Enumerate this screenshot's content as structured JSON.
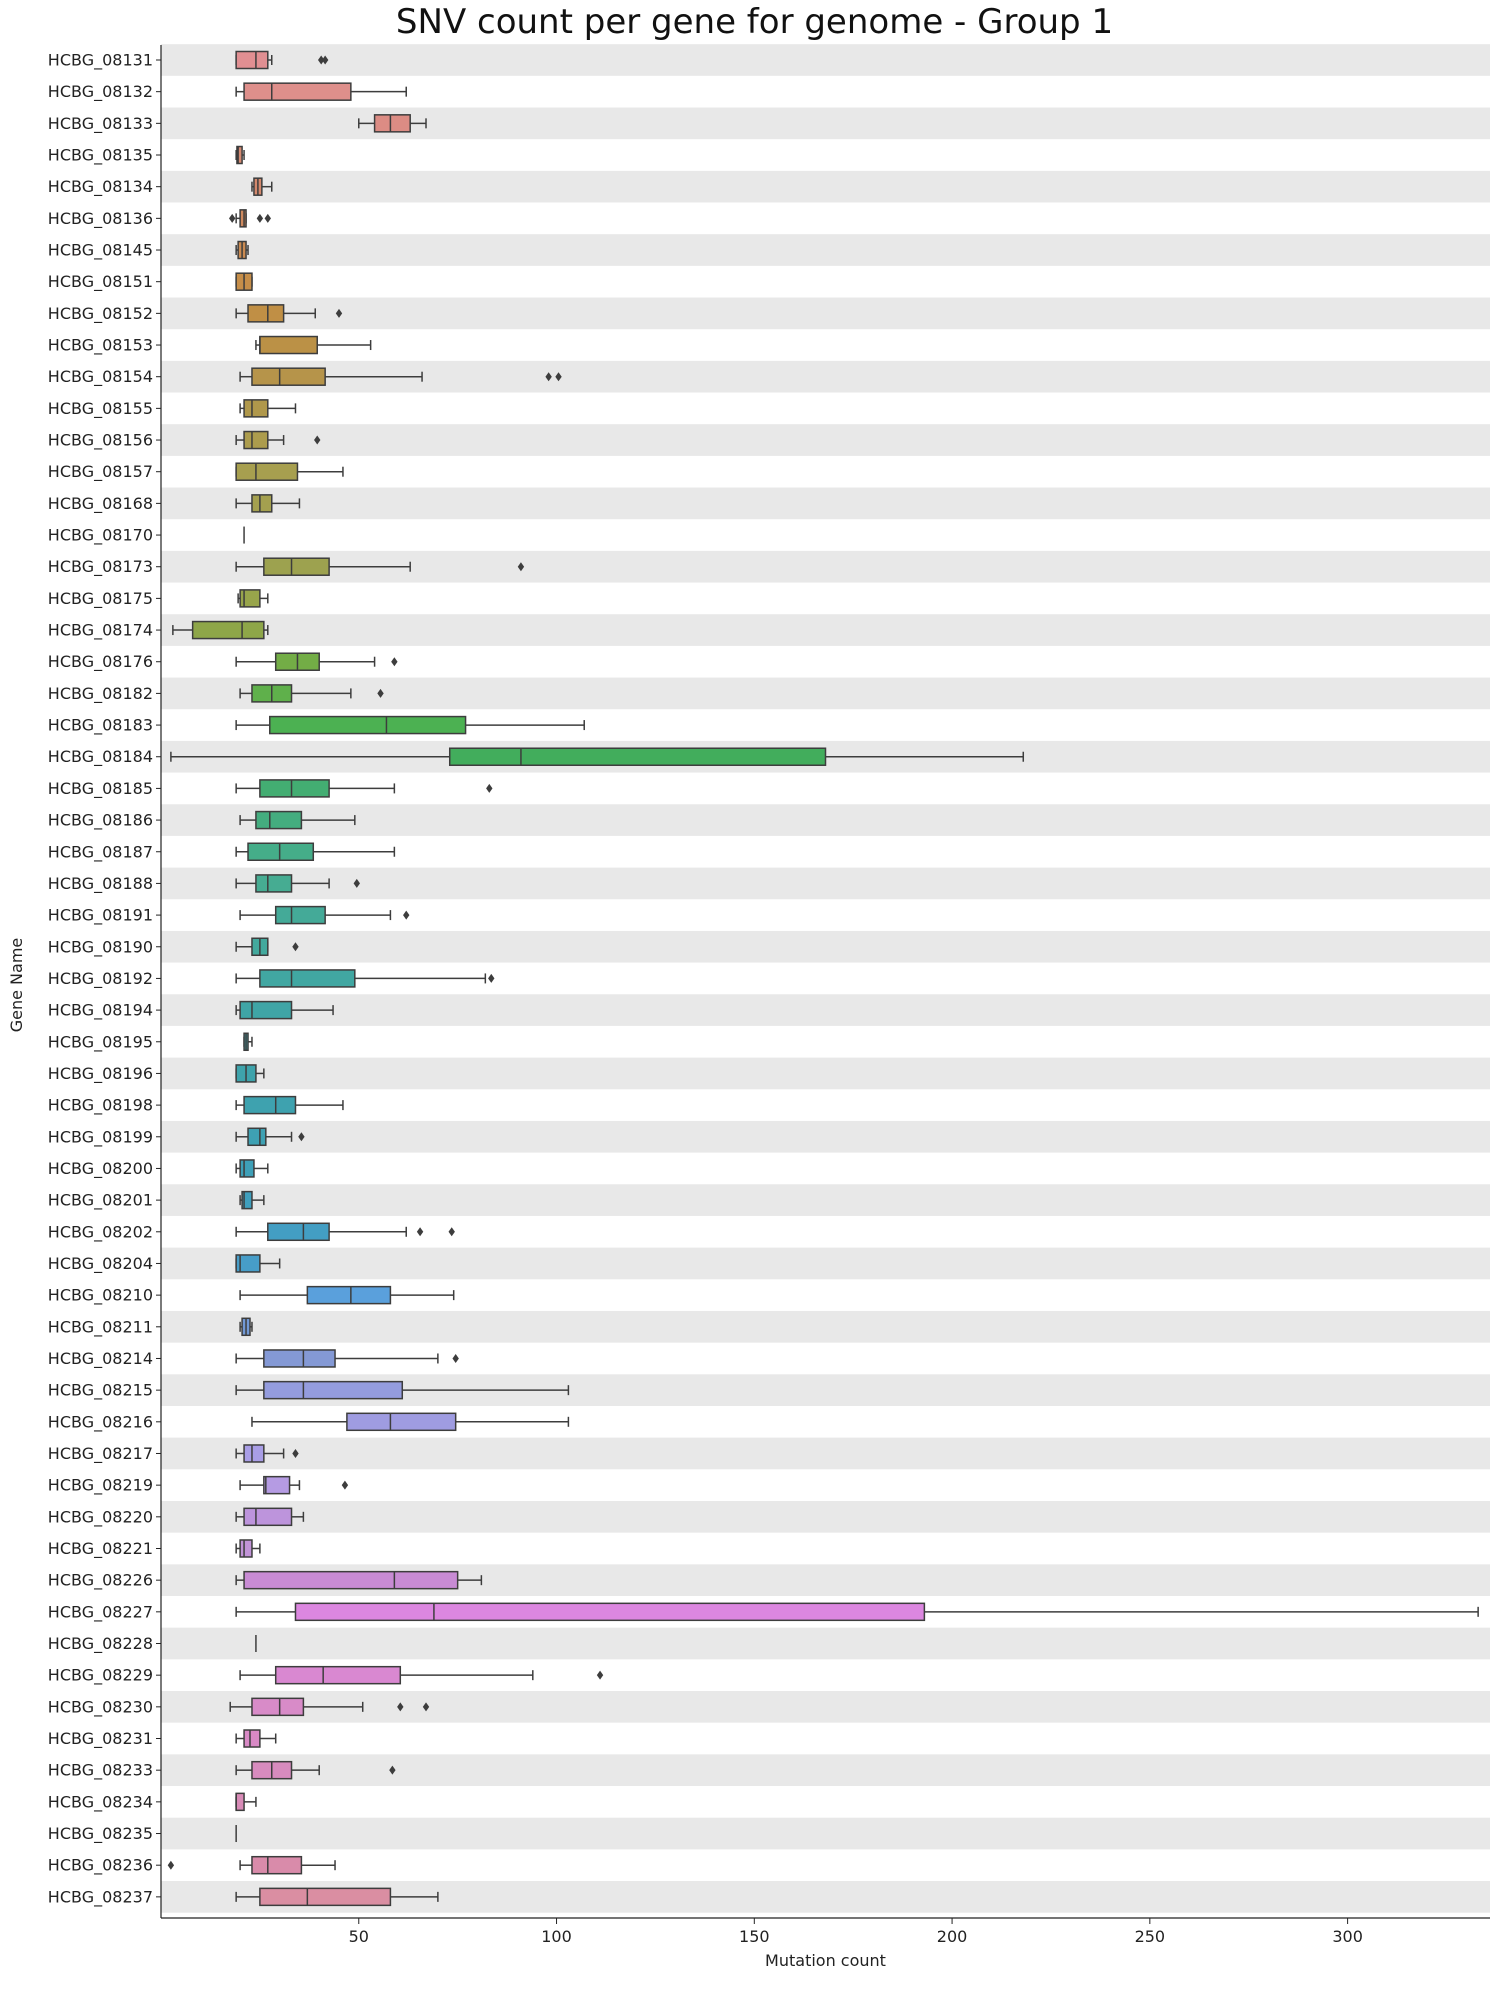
{
  "chart_data": {
    "type": "box",
    "orientation": "horizontal",
    "title": "SNV count per gene for genome - Group 1",
    "xlabel": "Mutation count",
    "ylabel": "Gene Name",
    "xlim": [
      0,
      336
    ],
    "xticks": [
      50,
      100,
      150,
      200,
      250,
      300
    ],
    "row_striping": true,
    "series": [
      {
        "gene": "HCBG_08131",
        "color": "#e08f92",
        "whisker_low": 19,
        "q1": 19,
        "median": 24,
        "q3": 27,
        "whisker_high": 28,
        "outliers": [
          40.5,
          41.5
        ]
      },
      {
        "gene": "HCBG_08132",
        "color": "#de8f8b",
        "whisker_low": 19,
        "q1": 21,
        "median": 28,
        "q3": 48,
        "whisker_high": 62,
        "outliers": []
      },
      {
        "gene": "HCBG_08133",
        "color": "#dc8c84",
        "whisker_low": 50,
        "q1": 54,
        "median": 58,
        "q3": 63,
        "whisker_high": 67,
        "outliers": []
      },
      {
        "gene": "HCBG_08135",
        "color": "#d58a72",
        "whisker_low": 19,
        "q1": 19.2,
        "median": 19.5,
        "q3": 20.5,
        "whisker_high": 21,
        "outliers": []
      },
      {
        "gene": "HCBG_08134",
        "color": "#d4896d",
        "whisker_low": 23,
        "q1": 23.5,
        "median": 24.5,
        "q3": 25.5,
        "whisker_high": 28,
        "outliers": []
      },
      {
        "gene": "HCBG_08136",
        "color": "#d08a5f",
        "whisker_low": 19,
        "q1": 20,
        "median": 21,
        "q3": 21.5,
        "whisker_high": 21.5,
        "outliers": [
          18,
          25,
          27
        ]
      },
      {
        "gene": "HCBG_08145",
        "color": "#cb8b52",
        "whisker_low": 19,
        "q1": 19.5,
        "median": 20.5,
        "q3": 21.5,
        "whisker_high": 22,
        "outliers": []
      },
      {
        "gene": "HCBG_08151",
        "color": "#c68e49",
        "whisker_low": 19,
        "q1": 19,
        "median": 21,
        "q3": 23,
        "whisker_high": 23,
        "outliers": []
      },
      {
        "gene": "HCBG_08152",
        "color": "#c08f45",
        "whisker_low": 19,
        "q1": 22,
        "median": 27,
        "q3": 31,
        "whisker_high": 39,
        "outliers": [
          45
        ]
      },
      {
        "gene": "HCBG_08153",
        "color": "#bb9146",
        "whisker_low": 24,
        "q1": 25,
        "median": 25,
        "q3": 39.5,
        "whisker_high": 53,
        "outliers": []
      },
      {
        "gene": "HCBG_08154",
        "color": "#b6944a",
        "whisker_low": 20,
        "q1": 23,
        "median": 30,
        "q3": 41.5,
        "whisker_high": 66,
        "outliers": [
          98,
          100.5
        ]
      },
      {
        "gene": "HCBG_08155",
        "color": "#b0984b",
        "whisker_low": 20,
        "q1": 21,
        "median": 23,
        "q3": 27,
        "whisker_high": 34,
        "outliers": []
      },
      {
        "gene": "HCBG_08156",
        "color": "#ac9c4d",
        "whisker_low": 19,
        "q1": 21,
        "median": 23,
        "q3": 27,
        "whisker_high": 31,
        "outliers": [
          39.5
        ]
      },
      {
        "gene": "HCBG_08157",
        "color": "#a79f4f",
        "whisker_low": 19,
        "q1": 19,
        "median": 24,
        "q3": 34.5,
        "whisker_high": 46,
        "outliers": []
      },
      {
        "gene": "HCBG_08168",
        "color": "#a4a04f",
        "whisker_low": 19,
        "q1": 23,
        "median": 25,
        "q3": 28,
        "whisker_high": 35,
        "outliers": []
      },
      {
        "gene": "HCBG_08170",
        "color": "#a1a24f",
        "whisker_low": 21,
        "q1": 21,
        "median": 21,
        "q3": 21,
        "whisker_high": 21,
        "outliers": []
      },
      {
        "gene": "HCBG_08173",
        "color": "#9da24f",
        "whisker_low": 19,
        "q1": 26,
        "median": 33,
        "q3": 42.5,
        "whisker_high": 63,
        "outliers": [
          91
        ]
      },
      {
        "gene": "HCBG_08175",
        "color": "#98a54b",
        "whisker_low": 19.5,
        "q1": 20,
        "median": 21,
        "q3": 25,
        "whisker_high": 27,
        "outliers": []
      },
      {
        "gene": "HCBG_08174",
        "color": "#8ea648",
        "whisker_low": 3,
        "q1": 8,
        "median": 20.5,
        "q3": 26,
        "whisker_high": 27,
        "outliers": []
      },
      {
        "gene": "HCBG_08176",
        "color": "#73ad46",
        "whisker_low": 19,
        "q1": 29,
        "median": 34.5,
        "q3": 40,
        "whisker_high": 54,
        "outliers": [
          59
        ]
      },
      {
        "gene": "HCBG_08182",
        "color": "#5fb04b",
        "whisker_low": 20,
        "q1": 23,
        "median": 28,
        "q3": 33,
        "whisker_high": 48,
        "outliers": [
          55.5
        ]
      },
      {
        "gene": "HCBG_08183",
        "color": "#4cb152",
        "whisker_low": 19,
        "q1": 27.5,
        "median": 57,
        "q3": 77,
        "whisker_high": 107,
        "outliers": []
      },
      {
        "gene": "HCBG_08184",
        "color": "#42ad5c",
        "whisker_low": 2.5,
        "q1": 73,
        "median": 91,
        "q3": 168,
        "whisker_high": 218,
        "outliers": []
      },
      {
        "gene": "HCBG_08185",
        "color": "#43ad72",
        "whisker_low": 19,
        "q1": 25,
        "median": 33,
        "q3": 42.5,
        "whisker_high": 59,
        "outliers": [
          83
        ]
      },
      {
        "gene": "HCBG_08186",
        "color": "#44ad7f",
        "whisker_low": 20,
        "q1": 24,
        "median": 27.5,
        "q3": 35.5,
        "whisker_high": 49,
        "outliers": []
      },
      {
        "gene": "HCBG_08187",
        "color": "#45ad89",
        "whisker_low": 19,
        "q1": 22,
        "median": 30,
        "q3": 38.5,
        "whisker_high": 59,
        "outliers": []
      },
      {
        "gene": "HCBG_08188",
        "color": "#46ac92",
        "whisker_low": 19,
        "q1": 24,
        "median": 27,
        "q3": 33,
        "whisker_high": 42.5,
        "outliers": [
          49.5
        ]
      },
      {
        "gene": "HCBG_08191",
        "color": "#44aa98",
        "whisker_low": 20,
        "q1": 29,
        "median": 33,
        "q3": 41.5,
        "whisker_high": 58,
        "outliers": [
          62
        ]
      },
      {
        "gene": "HCBG_08190",
        "color": "#43a99d",
        "whisker_low": 19,
        "q1": 23,
        "median": 25,
        "q3": 27,
        "whisker_high": 27,
        "outliers": [
          34
        ]
      },
      {
        "gene": "HCBG_08192",
        "color": "#41a7a2",
        "whisker_low": 19,
        "q1": 25,
        "median": 33,
        "q3": 49,
        "whisker_high": 82,
        "outliers": [
          83.5
        ]
      },
      {
        "gene": "HCBG_08194",
        "color": "#3fa5a6",
        "whisker_low": 19,
        "q1": 20,
        "median": 23,
        "q3": 33,
        "whisker_high": 43.5,
        "outliers": []
      },
      {
        "gene": "HCBG_08195",
        "color": "#3ea4a9",
        "whisker_low": 21,
        "q1": 21,
        "median": 21.5,
        "q3": 22,
        "whisker_high": 23,
        "outliers": []
      },
      {
        "gene": "HCBG_08196",
        "color": "#3ea3ab",
        "whisker_low": 19,
        "q1": 19,
        "median": 21.5,
        "q3": 24,
        "whisker_high": 26,
        "outliers": []
      },
      {
        "gene": "HCBG_08198",
        "color": "#3ea2af",
        "whisker_low": 19,
        "q1": 21,
        "median": 29,
        "q3": 34,
        "whisker_high": 46,
        "outliers": []
      },
      {
        "gene": "HCBG_08199",
        "color": "#3ea1b3",
        "whisker_low": 19,
        "q1": 22,
        "median": 25,
        "q3": 26.5,
        "whisker_high": 33,
        "outliers": [
          35.5
        ]
      },
      {
        "gene": "HCBG_08200",
        "color": "#3ea0b8",
        "whisker_low": 19,
        "q1": 20,
        "median": 21,
        "q3": 23.5,
        "whisker_high": 27,
        "outliers": []
      },
      {
        "gene": "HCBG_08201",
        "color": "#3f9fbd",
        "whisker_low": 20,
        "q1": 20.5,
        "median": 21,
        "q3": 23,
        "whisker_high": 26,
        "outliers": []
      },
      {
        "gene": "HCBG_08202",
        "color": "#439ec3",
        "whisker_low": 19,
        "q1": 27,
        "median": 36,
        "q3": 42.5,
        "whisker_high": 62,
        "outliers": [
          65.5,
          73.5
        ]
      },
      {
        "gene": "HCBG_08204",
        "color": "#479dc8",
        "whisker_low": 19,
        "q1": 19,
        "median": 20,
        "q3": 25,
        "whisker_high": 30,
        "outliers": []
      },
      {
        "gene": "HCBG_08210",
        "color": "#5aa0dc",
        "whisker_low": 20,
        "q1": 37,
        "median": 48,
        "q3": 58,
        "whisker_high": 74,
        "outliers": []
      },
      {
        "gene": "HCBG_08211",
        "color": "#7299d5",
        "whisker_low": 20,
        "q1": 20.5,
        "median": 21.5,
        "q3": 22.5,
        "whisker_high": 23,
        "outliers": []
      },
      {
        "gene": "HCBG_08214",
        "color": "#8499d5",
        "whisker_low": 19,
        "q1": 26,
        "median": 36,
        "q3": 44,
        "whisker_high": 70,
        "outliers": [
          74.5
        ]
      },
      {
        "gene": "HCBG_08215",
        "color": "#949cde",
        "whisker_low": 19,
        "q1": 26,
        "median": 36,
        "q3": 61,
        "whisker_high": 103,
        "outliers": []
      },
      {
        "gene": "HCBG_08216",
        "color": "#9f9ce1",
        "whisker_low": 23,
        "q1": 47,
        "median": 58,
        "q3": 74.5,
        "whisker_high": 103,
        "outliers": []
      },
      {
        "gene": "HCBG_08217",
        "color": "#a99ee6",
        "whisker_low": 19,
        "q1": 21,
        "median": 23,
        "q3": 26,
        "whisker_high": 31,
        "outliers": [
          34
        ]
      },
      {
        "gene": "HCBG_08219",
        "color": "#b59be3",
        "whisker_low": 20,
        "q1": 26,
        "median": 26.5,
        "q3": 32.5,
        "whisker_high": 35,
        "outliers": [
          46.5
        ]
      },
      {
        "gene": "HCBG_08220",
        "color": "#bd94dc",
        "whisker_low": 19,
        "q1": 21,
        "median": 24,
        "q3": 33,
        "whisker_high": 36,
        "outliers": []
      },
      {
        "gene": "HCBG_08221",
        "color": "#c294d8",
        "whisker_low": 19,
        "q1": 20,
        "median": 21,
        "q3": 23,
        "whisker_high": 25,
        "outliers": []
      },
      {
        "gene": "HCBG_08226",
        "color": "#c88bd4",
        "whisker_low": 19,
        "q1": 21,
        "median": 59,
        "q3": 75,
        "whisker_high": 81,
        "outliers": []
      },
      {
        "gene": "HCBG_08227",
        "color": "#dc87e0",
        "whisker_low": 19,
        "q1": 34,
        "median": 69,
        "q3": 193,
        "whisker_high": 333,
        "outliers": []
      },
      {
        "gene": "HCBG_08228",
        "color": "#da88d6",
        "whisker_low": 24,
        "q1": 24,
        "median": 24,
        "q3": 24,
        "whisker_high": 24,
        "outliers": []
      },
      {
        "gene": "HCBG_08229",
        "color": "#d988d1",
        "whisker_low": 20,
        "q1": 29,
        "median": 41,
        "q3": 60.5,
        "whisker_high": 94,
        "outliers": [
          111
        ]
      },
      {
        "gene": "HCBG_08230",
        "color": "#d88bc8",
        "whisker_low": 17.5,
        "q1": 23,
        "median": 30,
        "q3": 36,
        "whisker_high": 51,
        "outliers": [
          60.5,
          67
        ]
      },
      {
        "gene": "HCBG_08231",
        "color": "#d889c5",
        "whisker_low": 19,
        "q1": 21,
        "median": 22.5,
        "q3": 25,
        "whisker_high": 29,
        "outliers": []
      },
      {
        "gene": "HCBG_08233",
        "color": "#d78bbe",
        "whisker_low": 19,
        "q1": 23,
        "median": 28,
        "q3": 33,
        "whisker_high": 40,
        "outliers": [
          58.5
        ]
      },
      {
        "gene": "HCBG_08234",
        "color": "#d88bb7",
        "whisker_low": 19,
        "q1": 19,
        "median": 19,
        "q3": 21,
        "whisker_high": 24,
        "outliers": []
      },
      {
        "gene": "HCBG_08235",
        "color": "#d78bb0",
        "whisker_low": 19,
        "q1": 19,
        "median": 19,
        "q3": 19,
        "whisker_high": 19,
        "outliers": []
      },
      {
        "gene": "HCBG_08236",
        "color": "#d98baa",
        "whisker_low": 20,
        "q1": 23,
        "median": 27,
        "q3": 35.5,
        "whisker_high": 44,
        "outliers": [
          2.5
        ]
      },
      {
        "gene": "HCBG_08237",
        "color": "#da8ea2",
        "whisker_low": 19,
        "q1": 25,
        "median": 37,
        "q3": 58,
        "whisker_high": 70,
        "outliers": []
      }
    ]
  }
}
